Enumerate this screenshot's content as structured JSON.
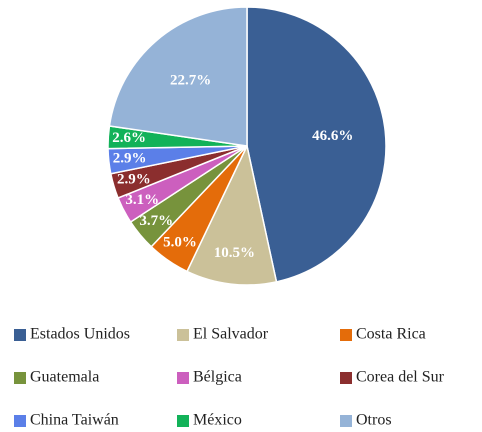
{
  "chart_data": {
    "type": "pie",
    "categories": [
      "Estados Unidos",
      "El Salvador",
      "Costa Rica",
      "Guatemala",
      "Bélgica",
      "Corea del Sur",
      "China Taiwán",
      "México",
      "Otros"
    ],
    "values": [
      46.6,
      10.5,
      5.0,
      3.7,
      3.1,
      2.9,
      2.9,
      2.6,
      22.7
    ],
    "value_labels": [
      "46.6%",
      "10.5%",
      "5.0%",
      "3.7%",
      "3.1%",
      "2.9%",
      "2.9%",
      "2.6%",
      "22.7%"
    ],
    "colors": [
      "#3a5f94",
      "#cbc199",
      "#e46c0a",
      "#77933c",
      "#cc5fbe",
      "#8b2e2e",
      "#5b7fe8",
      "#12b259",
      "#95b3d7"
    ]
  }
}
